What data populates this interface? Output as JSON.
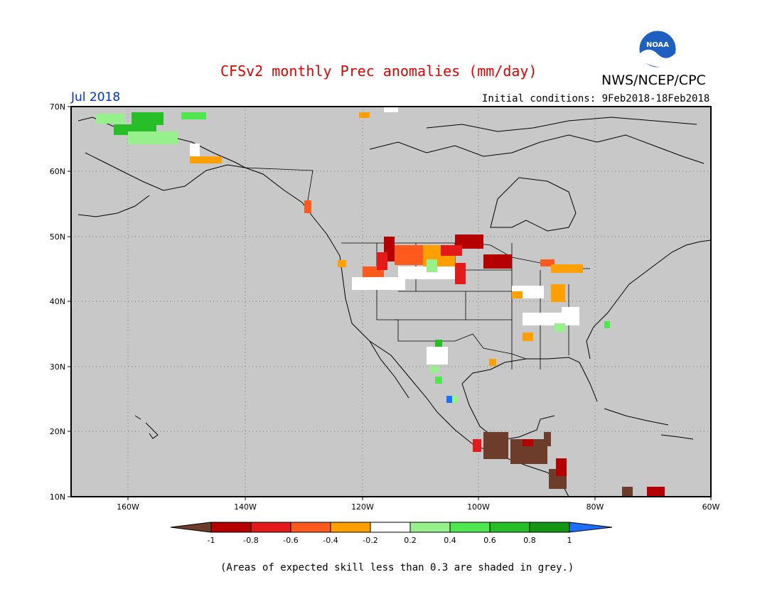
{
  "header": {
    "title": "CFSv2 monthly Prec anomalies (mm/day)",
    "org": "NWS/NCEP/CPC",
    "logo_text": "NOAA",
    "month": "Jul 2018",
    "initial_conditions": "Initial conditions: 9Feb2018-18Feb2018"
  },
  "map": {
    "lat_labels": [
      "70N",
      "60N",
      "50N",
      "40N",
      "30N",
      "20N",
      "10N"
    ],
    "lon_labels": [
      "160W",
      "140W",
      "120W",
      "100W",
      "80W",
      "60W"
    ],
    "background_color": "#c8c8c8"
  },
  "colorbar": {
    "labels": [
      "-1",
      "-0.8",
      "-0.6",
      "-0.4",
      "-0.2",
      "0.2",
      "0.4",
      "0.6",
      "0.8",
      "1"
    ],
    "colors": [
      "#6b3d2a",
      "#b40000",
      "#e21a1a",
      "#ff5a1e",
      "#ff9f00",
      "#ffffff",
      "#96f08c",
      "#50e650",
      "#28be28",
      "#149614",
      "#1e6eff"
    ]
  },
  "footnote": "(Areas of expected skill less than 0.3 are shaded in grey.)"
}
